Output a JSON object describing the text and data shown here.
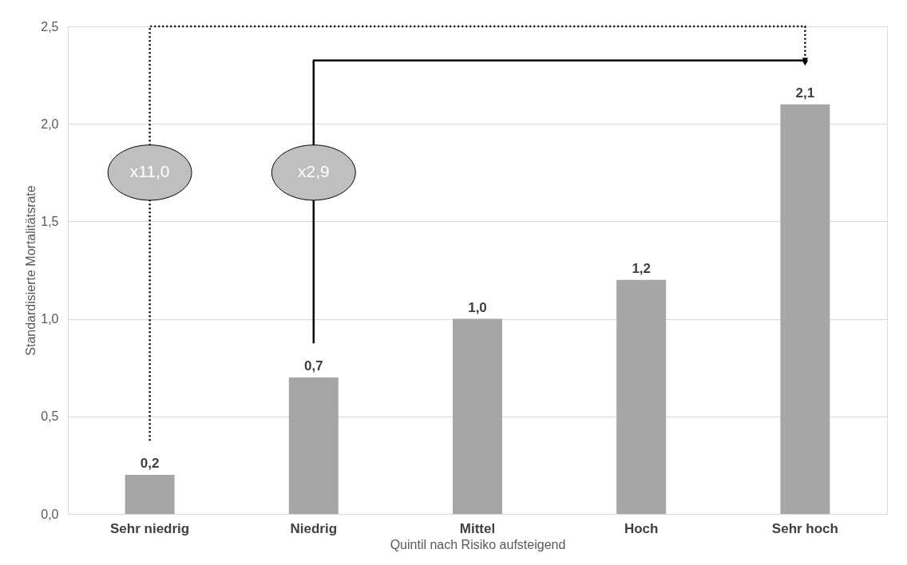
{
  "chart_data": {
    "type": "bar",
    "xlabel": "Quintil nach Risiko aufsteigend",
    "ylabel": "Standardisierte Mortalitätsrate",
    "categories": [
      "Sehr niedrig",
      "Niedrig",
      "Mittel",
      "Hoch",
      "Sehr hoch"
    ],
    "values": [
      0.2,
      0.7,
      1.0,
      1.2,
      2.1
    ],
    "value_labels": [
      "0,2",
      "0,7",
      "1,0",
      "1,2",
      "2,1"
    ],
    "color": "#a6a6a6",
    "ylim": [
      0,
      2.5
    ],
    "yticks": [
      {
        "value": 0,
        "label": "0,0"
      },
      {
        "value": 0.5,
        "label": "0,5"
      },
      {
        "value": 1,
        "label": "1,0"
      },
      {
        "value": 1.5,
        "label": "1,5"
      },
      {
        "value": 2,
        "label": "2,0"
      },
      {
        "value": 2.5,
        "label": "2,5"
      }
    ],
    "grid": "y",
    "annotations": [
      "x11,0",
      "x2,9"
    ]
  }
}
